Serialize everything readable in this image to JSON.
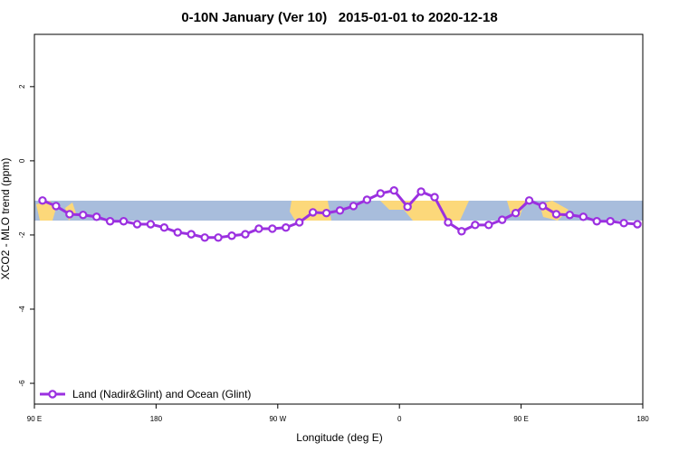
{
  "chart_data": {
    "type": "line",
    "title": "0-10N January (Ver 10)   2015-01-01 to 2020-12-18",
    "x_label": "Longitude (deg E)",
    "y_label": "XCO2 - MLO trend (ppm)",
    "x": [
      96,
      106,
      116,
      126,
      136,
      146,
      156,
      166,
      176,
      186,
      196,
      206,
      216,
      226,
      236,
      246,
      256,
      266,
      276,
      286,
      296,
      306,
      316,
      326,
      336,
      346,
      356,
      366,
      376,
      386,
      396,
      406,
      416,
      426,
      436,
      446,
      456,
      466,
      476,
      486,
      496,
      506,
      516,
      526,
      536
    ],
    "series": [
      {
        "name": "Land (Nadir&Glint) and Ocean (Glint)",
        "color": "#9b30e0",
        "values": [
          -1.07,
          -1.22,
          -1.44,
          -1.46,
          -1.51,
          -1.63,
          -1.63,
          -1.71,
          -1.71,
          -1.8,
          -1.93,
          -1.98,
          -2.07,
          -2.07,
          -2.02,
          -1.98,
          -1.83,
          -1.83,
          -1.8,
          -1.66,
          -1.39,
          -1.41,
          -1.34,
          -1.22,
          -1.05,
          -0.88,
          -0.8,
          -1.24,
          -0.83,
          -0.98,
          -1.66,
          -1.9,
          -1.73,
          -1.73,
          -1.59,
          -1.41,
          -1.07,
          -1.22,
          -1.44,
          -1.46,
          -1.51,
          -1.63,
          -1.63,
          -1.68,
          -1.71
        ]
      }
    ],
    "xlim": [
      90,
      540
    ],
    "ylim": [
      -6.56,
      3.41
    ],
    "xticks": [
      {
        "value": 90,
        "label": "90 E"
      },
      {
        "value": 180,
        "label": "180"
      },
      {
        "value": 270,
        "label": "90 W"
      },
      {
        "value": 360,
        "label": "0"
      },
      {
        "value": 450,
        "label": "90 E"
      },
      {
        "value": 540,
        "label": "180"
      }
    ],
    "yticks": [
      2,
      0,
      -2,
      -4,
      -6
    ],
    "legend": "bottom-left"
  }
}
